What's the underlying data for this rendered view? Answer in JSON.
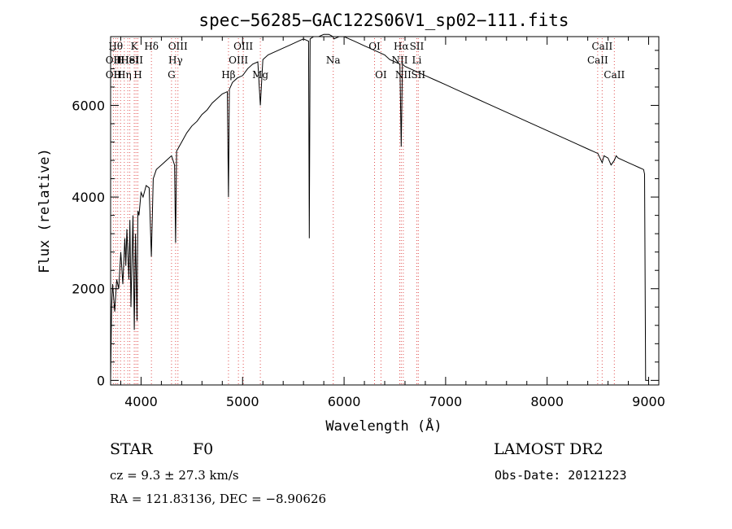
{
  "chart_data": {
    "type": "line",
    "title": "spec−56285−GAC122S06V1_sp02−111.fits",
    "xlabel": "Wavelength (Å)",
    "ylabel": "Flux (relative)",
    "xlim": [
      3700,
      9100
    ],
    "ylim": [
      -100,
      7500
    ],
    "x_ticks": [
      4000,
      5000,
      6000,
      7000,
      8000,
      9000
    ],
    "y_ticks": [
      0,
      2000,
      4000,
      6000
    ],
    "grid": false,
    "series": [
      {
        "x": [
          3700,
          3710,
          3720,
          3740,
          3760,
          3780,
          3800,
          3820,
          3840,
          3850,
          3860,
          3880,
          3890,
          3900,
          3920,
          3933,
          3945,
          3960,
          3968,
          3980,
          4000,
          4020,
          4050,
          4080,
          4101,
          4120,
          4150,
          4200,
          4250,
          4300,
          4330,
          4340,
          4350,
          4400,
          4450,
          4500,
          4550,
          4600,
          4650,
          4700,
          4750,
          4800,
          4850,
          4861,
          4870,
          4900,
          4950,
          5000,
          5050,
          5100,
          5150,
          5175,
          5200,
          5250,
          5300,
          5350,
          5400,
          5450,
          5500,
          5550,
          5600,
          5650,
          5657,
          5665,
          5700,
          5750,
          5800,
          5850,
          5890,
          5900,
          5950,
          6000,
          6050,
          6100,
          6150,
          6200,
          6250,
          6300,
          6350,
          6400,
          6450,
          6500,
          6550,
          6563,
          6575,
          6600,
          6650,
          6700,
          6800,
          6900,
          7000,
          7100,
          7200,
          7300,
          7400,
          7500,
          7600,
          7700,
          7800,
          7900,
          8000,
          8100,
          8200,
          8300,
          8400,
          8450,
          8500,
          8542,
          8560,
          8600,
          8630,
          8662,
          8680,
          8700,
          8750,
          8800,
          8850,
          8900,
          8950,
          8960,
          8970,
          8980,
          9000
        ],
        "y": [
          0,
          1600,
          2100,
          1500,
          2200,
          2000,
          2800,
          2100,
          3100,
          2500,
          3300,
          2200,
          3500,
          1600,
          3600,
          1100,
          3200,
          1300,
          3700,
          3600,
          4100,
          4000,
          4250,
          4200,
          2700,
          4400,
          4600,
          4700,
          4800,
          4900,
          4700,
          3000,
          5000,
          5200,
          5400,
          5550,
          5650,
          5800,
          5900,
          6050,
          6150,
          6250,
          6300,
          4000,
          6350,
          6500,
          6600,
          6650,
          6800,
          6900,
          6950,
          6000,
          7000,
          7100,
          7150,
          7200,
          7250,
          7300,
          7350,
          7400,
          7450,
          7400,
          3100,
          7450,
          7500,
          7500,
          7550,
          7550,
          7500,
          7450,
          7500,
          7500,
          7450,
          7400,
          7350,
          7300,
          7250,
          7200,
          7150,
          7100,
          7000,
          6950,
          6900,
          5100,
          6900,
          6850,
          6800,
          6750,
          6650,
          6550,
          6450,
          6350,
          6250,
          6150,
          6050,
          5950,
          5850,
          5750,
          5650,
          5550,
          5450,
          5350,
          5250,
          5150,
          5050,
          5000,
          4950,
          4750,
          4900,
          4850,
          4700,
          4800,
          4900,
          4850,
          4800,
          4750,
          4700,
          4650,
          4600,
          4500,
          0,
          0,
          0
        ]
      }
    ],
    "line_markers": [
      {
        "wave": 3727,
        "row": 2,
        "label": "OII"
      },
      {
        "wave": 3727,
        "row": 3,
        "label": "OII"
      },
      {
        "wave": 3750,
        "row": 1,
        "label": "Hθ"
      },
      {
        "wave": 3770,
        "row": 2,
        "label": "H"
      },
      {
        "wave": 3771,
        "row": 3,
        "label": "H"
      },
      {
        "wave": 3798,
        "row": 2,
        "label": "H"
      },
      {
        "wave": 3835,
        "row": 3,
        "label": "Hη"
      },
      {
        "wave": 3869,
        "row": 2,
        "label": "He"
      },
      {
        "wave": 3889,
        "row": 2,
        "label": "HeI"
      },
      {
        "wave": 3933,
        "row": 1,
        "label": "K"
      },
      {
        "wave": 3950,
        "row": 2,
        "label": "SII"
      },
      {
        "wave": 3968,
        "row": 3,
        "label": "H"
      },
      {
        "wave": 4102,
        "row": 1,
        "label": "Hδ"
      },
      {
        "wave": 4300,
        "row": 3,
        "label": "G"
      },
      {
        "wave": 4340,
        "row": 2,
        "label": "Hγ"
      },
      {
        "wave": 4363,
        "row": 1,
        "label": "OIII"
      },
      {
        "wave": 4861,
        "row": 3,
        "label": "Hβ"
      },
      {
        "wave": 4959,
        "row": 2,
        "label": "OIII"
      },
      {
        "wave": 5007,
        "row": 1,
        "label": "OIII"
      },
      {
        "wave": 5175,
        "row": 3,
        "label": "Mg"
      },
      {
        "wave": 5893,
        "row": 2,
        "label": "Na"
      },
      {
        "wave": 6300,
        "row": 1,
        "label": "OI"
      },
      {
        "wave": 6363,
        "row": 3,
        "label": "OI"
      },
      {
        "wave": 6548,
        "row": 2,
        "label": "NII"
      },
      {
        "wave": 6563,
        "row": 1,
        "label": "Hα"
      },
      {
        "wave": 6583,
        "row": 3,
        "label": "NII"
      },
      {
        "wave": 6716,
        "row": 1,
        "label": "SII"
      },
      {
        "wave": 6716,
        "row": 2,
        "label": "Li"
      },
      {
        "wave": 6731,
        "row": 3,
        "label": "SII"
      },
      {
        "wave": 8498,
        "row": 2,
        "label": "CaII"
      },
      {
        "wave": 8542,
        "row": 1,
        "label": "CaII"
      },
      {
        "wave": 8662,
        "row": 3,
        "label": "CaII"
      }
    ]
  },
  "info": {
    "class_text": "STAR",
    "subclass_text": "F0",
    "survey": "LAMOST DR2",
    "redshift_text": "cz = 9.3 ± 27.3 km/s",
    "obsdate_text": "Obs-Date: 20121223",
    "radec_text": "RA = 121.83136, DEC =  −8.90626"
  },
  "colors": {
    "spectrum": "#000000",
    "marker": "#e05050",
    "axis": "#000000"
  }
}
